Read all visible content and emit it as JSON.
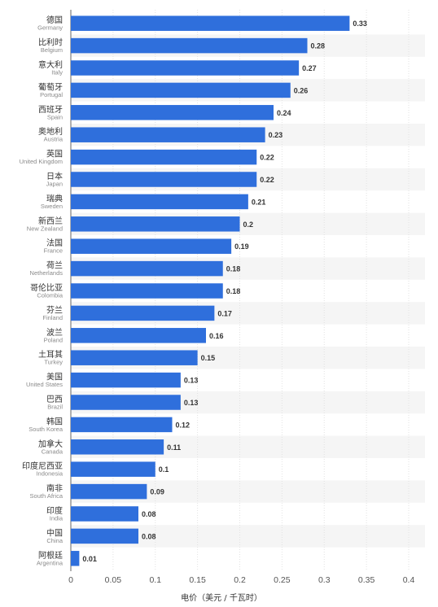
{
  "chart_data": {
    "type": "bar",
    "orientation": "horizontal",
    "xlabel": "电价（美元 / 千瓦时）",
    "xlim": [
      0,
      0.4
    ],
    "xticks": [
      "0",
      "0.05",
      "0.1",
      "0.15",
      "0.2",
      "0.25",
      "0.3",
      "0.35",
      "0.4"
    ],
    "bar_color": "#2f6fdc",
    "categories": [
      {
        "cn": "德国",
        "en": "Germany"
      },
      {
        "cn": "比利时",
        "en": "Belgium"
      },
      {
        "cn": "意大利",
        "en": "Italy"
      },
      {
        "cn": "葡萄牙",
        "en": "Portugal"
      },
      {
        "cn": "西班牙",
        "en": "Spain"
      },
      {
        "cn": "奥地利",
        "en": "Austria"
      },
      {
        "cn": "英国",
        "en": "United Kingdom"
      },
      {
        "cn": "日本",
        "en": "Japan"
      },
      {
        "cn": "瑞典",
        "en": "Sweden"
      },
      {
        "cn": "新西兰",
        "en": "New Zealand"
      },
      {
        "cn": "法国",
        "en": "France"
      },
      {
        "cn": "荷兰",
        "en": "Netherlands"
      },
      {
        "cn": "哥伦比亚",
        "en": "Colombia"
      },
      {
        "cn": "芬兰",
        "en": "Finland"
      },
      {
        "cn": "波兰",
        "en": "Poland"
      },
      {
        "cn": "土耳其",
        "en": "Turkey"
      },
      {
        "cn": "美国",
        "en": "United States"
      },
      {
        "cn": "巴西",
        "en": "Brazil"
      },
      {
        "cn": "韩国",
        "en": "South Korea"
      },
      {
        "cn": "加拿大",
        "en": "Canada"
      },
      {
        "cn": "印度尼西亚",
        "en": "Indonesia"
      },
      {
        "cn": "南非",
        "en": "South Africa"
      },
      {
        "cn": "印度",
        "en": "India"
      },
      {
        "cn": "中国",
        "en": "China"
      },
      {
        "cn": "阿根廷",
        "en": "Argentina"
      }
    ],
    "values": [
      0.33,
      0.28,
      0.27,
      0.26,
      0.24,
      0.23,
      0.22,
      0.22,
      0.21,
      0.2,
      0.19,
      0.18,
      0.18,
      0.17,
      0.16,
      0.15,
      0.13,
      0.13,
      0.12,
      0.11,
      0.1,
      0.09,
      0.08,
      0.08,
      0.01
    ],
    "value_labels": [
      "0.33",
      "0.28",
      "0.27",
      "0.26",
      "0.24",
      "0.23",
      "0.22",
      "0.22",
      "0.21",
      "0.2",
      "0.19",
      "0.18",
      "0.18",
      "0.17",
      "0.16",
      "0.15",
      "0.13",
      "0.13",
      "0.12",
      "0.11",
      "0.1",
      "0.09",
      "0.08",
      "0.08",
      "0.01"
    ]
  }
}
